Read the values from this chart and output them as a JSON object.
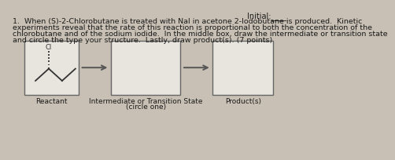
{
  "background_color": "#c8c0b4",
  "box_bg_color": "#e8e4de",
  "title_text": "Initial:____",
  "question_lines": [
    "1.  When (S)-2-Chlorobutane is treated with NaI in acetone 2-Iodobutane is produced.  Kinetic",
    "experiments reveal that the rate of this reaction is proportional to both the concentration of the",
    "chlorobutane and of the sodium iodide.  In the middle box, draw the intermediate or transition state",
    "and circle the type your structure.  Lastly, draw product(s). (7 points)"
  ],
  "box1_label": "Reactant",
  "box2_label": "Intermediate or Transition State",
  "box2_label2": "(circle one)",
  "box3_label": "Product(s)",
  "box_edgecolor": "#666666",
  "arrow_color": "#555555",
  "text_color": "#1a1a1a",
  "mol_color": "#333333",
  "label_fontsize": 6.5,
  "question_fontsize": 6.8,
  "title_fontsize": 7.0,
  "mol_lw": 1.3
}
